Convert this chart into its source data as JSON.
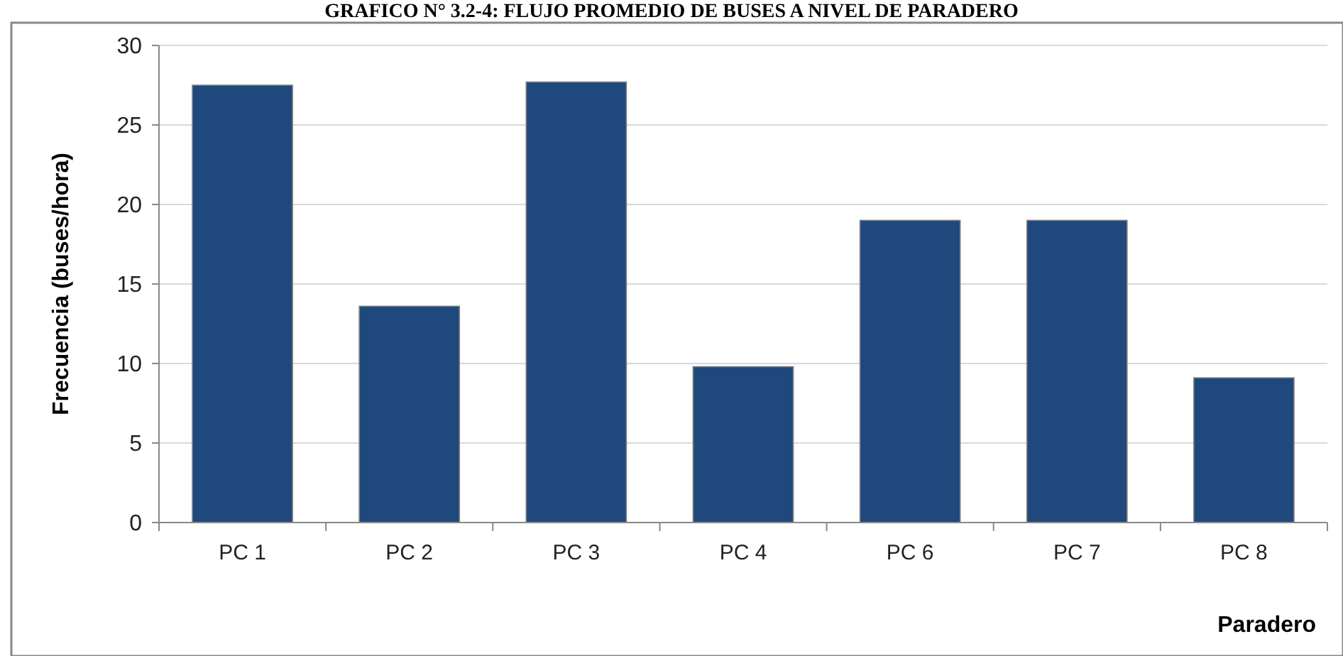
{
  "chart_data": {
    "type": "bar",
    "title": "GRAFICO N° 3.2-4: FLUJO PROMEDIO DE BUSES A NIVEL DE PARADERO",
    "categories": [
      "PC 1",
      "PC 2",
      "PC 3",
      "PC 4",
      "PC 6",
      "PC 7",
      "PC 8"
    ],
    "values": [
      27.5,
      13.6,
      27.7,
      9.8,
      19.0,
      19.0,
      9.1
    ],
    "color": "#1f497d",
    "xlabel": "Paradero",
    "ylabel": "Frecuencia (buses/hora)",
    "ylim": [
      0,
      30
    ],
    "yticks": [
      0,
      5,
      10,
      15,
      20,
      25,
      30
    ],
    "grid": "y"
  }
}
